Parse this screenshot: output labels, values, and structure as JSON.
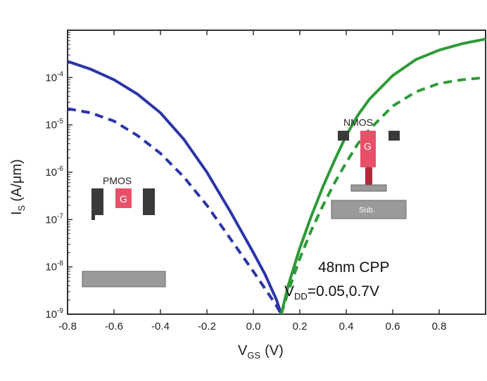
{
  "chart_data": {
    "type": "line",
    "xlabel": "V",
    "xlabel_sub": "GS",
    "xlabel_unit": "(V)",
    "ylabel": "I",
    "ylabel_sub": "S",
    "ylabel_unit": "(A/μm)",
    "xlim": [
      -0.8,
      1.0
    ],
    "ylim": [
      1e-09,
      0.001
    ],
    "y_scale": "log",
    "x_ticks": [
      "-0.8",
      "-0.6",
      "-0.4",
      "-0.2",
      "0.0",
      "0.2",
      "0.4",
      "0.6",
      "0.8"
    ],
    "x_tick_values": [
      -0.8,
      -0.6,
      -0.4,
      -0.2,
      0.0,
      0.2,
      0.4,
      0.6,
      0.8
    ],
    "y_ticks": [
      {
        "base": "10",
        "exp": "-4",
        "value": 0.0001
      },
      {
        "base": "10",
        "exp": "-5",
        "value": 1e-05
      },
      {
        "base": "10",
        "exp": "-6",
        "value": 1e-06
      },
      {
        "base": "10",
        "exp": "-7",
        "value": 1e-07
      },
      {
        "base": "10",
        "exp": "-8",
        "value": 1e-08
      },
      {
        "base": "10",
        "exp": "-9",
        "value": 1e-09
      }
    ],
    "grid": false,
    "series": [
      {
        "device": "PMOS",
        "style": "solid",
        "color": "#2b35a8",
        "x": [
          -0.8,
          -0.7,
          -0.6,
          -0.5,
          -0.4,
          -0.3,
          -0.2,
          -0.1,
          0.0,
          0.05,
          0.1,
          0.12
        ],
        "y": [
          0.00022,
          0.00015,
          9e-05,
          4.5e-05,
          1.8e-05,
          5e-06,
          1e-06,
          1.5e-07,
          2e-08,
          7e-09,
          2e-09,
          1e-09
        ]
      },
      {
        "device": "PMOS",
        "style": "dashed",
        "color": "#2b35a8",
        "x": [
          -0.8,
          -0.7,
          -0.6,
          -0.5,
          -0.4,
          -0.3,
          -0.2,
          -0.1,
          0.0,
          0.05,
          0.1,
          0.12
        ],
        "y": [
          2.2e-05,
          1.8e-05,
          1.2e-05,
          6e-06,
          2.5e-06,
          8e-07,
          2e-07,
          4e-08,
          8e-09,
          3.5e-09,
          1.5e-09,
          1e-09
        ]
      },
      {
        "device": "NMOS",
        "style": "solid",
        "color": "#2e9a38",
        "x": [
          0.12,
          0.15,
          0.2,
          0.25,
          0.3,
          0.35,
          0.4,
          0.45,
          0.5,
          0.6,
          0.7,
          0.8,
          0.9,
          1.0
        ],
        "y": [
          1e-09,
          4e-09,
          2.5e-08,
          1.2e-07,
          5e-07,
          1.8e-06,
          6e-06,
          1.6e-05,
          3.5e-05,
          0.00011,
          0.00024,
          0.00038,
          0.00052,
          0.00065
        ]
      },
      {
        "device": "NMOS",
        "style": "dashed",
        "color": "#2e9a38",
        "x": [
          0.12,
          0.15,
          0.2,
          0.25,
          0.3,
          0.35,
          0.4,
          0.45,
          0.5,
          0.6,
          0.7,
          0.8,
          0.9,
          1.0
        ],
        "y": [
          1e-09,
          3e-09,
          1.5e-08,
          6e-08,
          2e-07,
          6e-07,
          1.6e-06,
          4e-06,
          8e-06,
          2.5e-05,
          5e-05,
          7.5e-05,
          9e-05,
          0.0001
        ]
      }
    ],
    "annotations": {
      "cpp": "48nm CPP",
      "vdd_main": "V",
      "vdd_sub": "DD",
      "vdd_value": "=0.05,0.7V"
    },
    "insets": {
      "pmos_label": "PMOS",
      "pmos_gate": "G",
      "nmos_label": "NMOS",
      "nmos_gate": "G",
      "nmos_substrate": "Sub."
    }
  }
}
